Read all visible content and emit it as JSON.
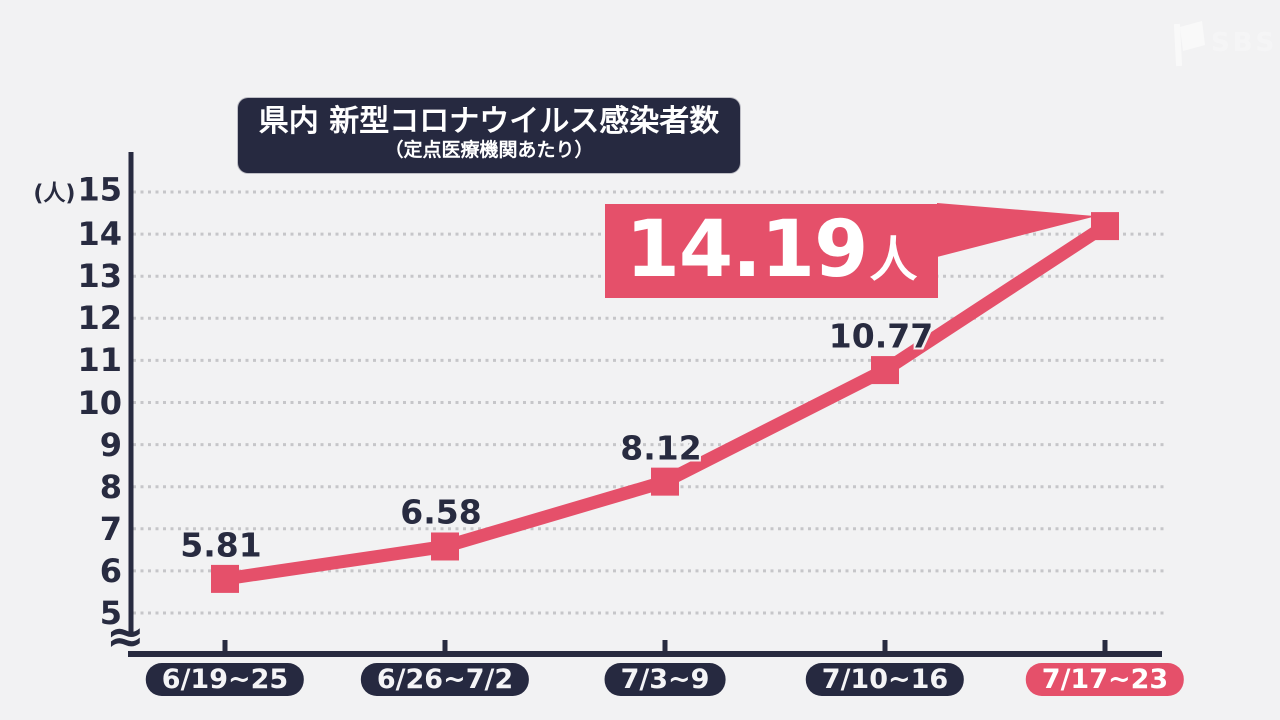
{
  "watermark": {
    "text": "SBS",
    "icon": "sbs-flag-icon"
  },
  "chart_data": {
    "type": "line",
    "title": "県内 新型コロナウイルス感染者数",
    "subtitle": "（定点医療機関あたり）",
    "categories": [
      "6/19~25",
      "6/26~7/2",
      "7/3~9",
      "7/10~16",
      "7/17~23"
    ],
    "values": [
      5.81,
      6.58,
      8.12,
      10.77,
      14.19
    ],
    "point_labels": [
      "5.81",
      "6.58",
      "8.12",
      "10.77"
    ],
    "callout": {
      "value": "14.19",
      "unit": "人"
    },
    "highlighted_category_index": 4,
    "y_axis": {
      "unit_label": "(人)",
      "ticks": [
        15,
        14,
        13,
        12,
        11,
        10,
        9,
        8,
        7,
        6,
        5
      ],
      "range": [
        5,
        15
      ],
      "axis_break": "≈"
    },
    "grid": "dotted-horizontal",
    "legend": "none",
    "colors": {
      "line": "#e5506a",
      "axis": "#282b40",
      "grid_dots": "#c6c6c9",
      "background": "#f2f2f3",
      "label_box": "#262940",
      "highlight_box": "#e5506a",
      "text_on_dark": "#ffffff"
    }
  }
}
